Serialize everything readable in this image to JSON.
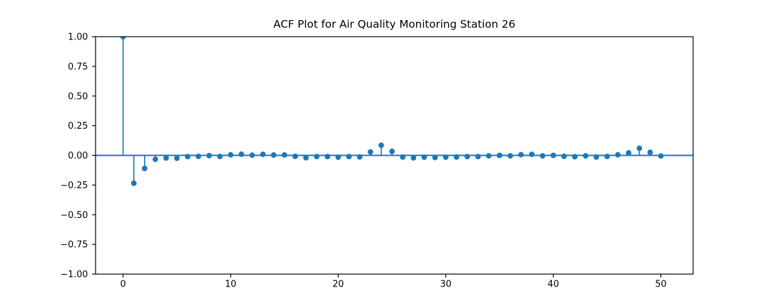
{
  "chart_data": {
    "type": "scatter",
    "variant": "stem",
    "title": "ACF Plot for Air Quality Monitoring Station 26",
    "xlabel": "",
    "ylabel": "",
    "x": [
      0,
      1,
      2,
      3,
      4,
      5,
      6,
      7,
      8,
      9,
      10,
      11,
      12,
      13,
      14,
      15,
      16,
      17,
      18,
      19,
      20,
      21,
      22,
      23,
      24,
      25,
      26,
      27,
      28,
      29,
      30,
      31,
      32,
      33,
      34,
      35,
      36,
      37,
      38,
      39,
      40,
      41,
      42,
      43,
      44,
      45,
      46,
      47,
      48,
      49,
      50
    ],
    "values": [
      1.0,
      -0.235,
      -0.11,
      -0.033,
      -0.022,
      -0.024,
      -0.01,
      -0.008,
      -0.002,
      -0.009,
      0.005,
      0.01,
      0.002,
      0.009,
      0.003,
      0.004,
      -0.008,
      -0.02,
      -0.01,
      -0.01,
      -0.015,
      -0.01,
      -0.013,
      0.029,
      0.085,
      0.034,
      -0.014,
      -0.021,
      -0.015,
      -0.018,
      -0.015,
      -0.014,
      -0.01,
      -0.01,
      -0.004,
      0.0,
      -0.004,
      0.006,
      0.009,
      -0.004,
      0.0,
      -0.008,
      -0.011,
      -0.004,
      -0.014,
      -0.009,
      0.005,
      0.021,
      0.06,
      0.026,
      -0.005
    ],
    "baseline_y": 0.0,
    "xlim": [
      -2.56,
      53.0
    ],
    "ylim": [
      -1.0,
      1.0
    ],
    "xticks": {
      "values": [
        0,
        10,
        20,
        30,
        40,
        50
      ],
      "labels": [
        "0",
        "10",
        "20",
        "30",
        "40",
        "50"
      ]
    },
    "yticks": {
      "values": [
        1.0,
        0.75,
        0.5,
        0.25,
        0.0,
        -0.25,
        -0.5,
        -0.75,
        -1.0
      ],
      "labels": [
        "1.00",
        "0.75",
        "0.50",
        "0.25",
        "0.00",
        "−0.25",
        "−0.50",
        "−0.75",
        "−1.00"
      ]
    },
    "grid": false,
    "legend": false,
    "colors": {
      "series": "#1f77b4",
      "baseline": "#1f77b4",
      "spine": "#000000",
      "text": "#000000",
      "background": "#ffffff"
    }
  }
}
